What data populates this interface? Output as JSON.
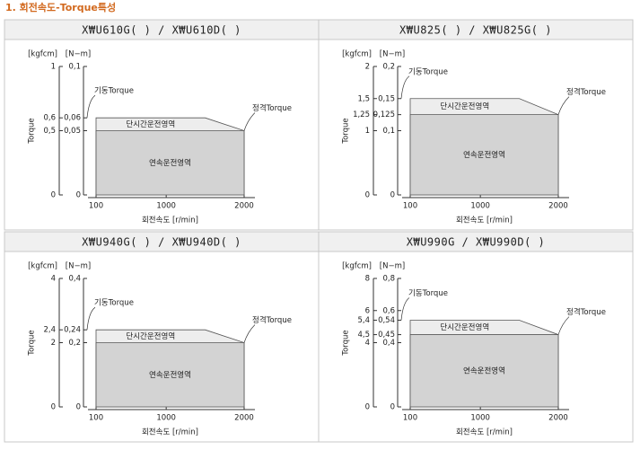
{
  "header": {
    "title": "1. 회전속도-Torque특성"
  },
  "chart_data": [
    {
      "type": "area",
      "title": "X₩U610G( ) / X₩U610D( )",
      "y_label": "Torque",
      "y_unit": "[N−m]",
      "y2_unit": "[kgfcm]",
      "x_label": "회전속도 [r/min]",
      "xlim": [
        100,
        2000
      ],
      "xticks": [
        100,
        1000,
        2000
      ],
      "ylim": [
        0,
        0.1
      ],
      "yticks": [
        0,
        {
          "value": 0.05,
          "label": "0,05"
        },
        {
          "value": 0.06,
          "label": "0,06"
        },
        {
          "value": 0.1,
          "label": "0,1"
        }
      ],
      "y2lim": [
        0,
        1
      ],
      "y2ticks": [
        0,
        {
          "value": 0.5,
          "label": "0,5"
        },
        {
          "value": 0.6,
          "label": "0,6"
        },
        1
      ],
      "annotations": [
        "기동Torque",
        "정격Torque"
      ],
      "series": [
        {
          "name": "단시간운전영역",
          "color": "#ededed",
          "x": [
            100,
            1500,
            2000
          ],
          "values": [
            0.06,
            0.06,
            0.05
          ]
        },
        {
          "name": "연속운전영역",
          "color": "#d3d3d3",
          "x": [
            100,
            2000
          ],
          "values": [
            0.05,
            0.05
          ]
        }
      ]
    },
    {
      "type": "area",
      "title": "X₩U825( ) / X₩U825G( )",
      "y_label": "Torque",
      "y_unit": "[N−m]",
      "y2_unit": "[kgfcm]",
      "x_label": "회전속도 [r/min]",
      "xlim": [
        100,
        2000
      ],
      "xticks": [
        100,
        1000,
        2000
      ],
      "ylim": [
        0,
        0.2
      ],
      "yticks": [
        0,
        {
          "value": 0.1,
          "label": "0,1"
        },
        {
          "value": 0.125,
          "label": "0,125"
        },
        {
          "value": 0.15,
          "label": "0,15"
        },
        {
          "value": 0.2,
          "label": "0,2"
        }
      ],
      "y2lim": [
        0,
        2
      ],
      "y2ticks": [
        0,
        1,
        {
          "value": 1.25,
          "label": "1,25"
        },
        {
          "value": 1.5,
          "label": "1,5"
        },
        2
      ],
      "annotations": [
        "기동Torque",
        "정격Torque"
      ],
      "series": [
        {
          "name": "단시간운전영역",
          "color": "#ededed",
          "x": [
            100,
            1500,
            2000
          ],
          "values": [
            0.15,
            0.15,
            0.125
          ]
        },
        {
          "name": "연속운전영역",
          "color": "#d3d3d3",
          "x": [
            100,
            2000
          ],
          "values": [
            0.125,
            0.125
          ]
        }
      ]
    },
    {
      "type": "area",
      "title": "X₩U940G( ) / X₩U940D( )",
      "y_label": "Torque",
      "y_unit": "[N−m]",
      "y2_unit": "[kgfcm]",
      "x_label": "회전속도 [r/min]",
      "xlim": [
        100,
        2000
      ],
      "xticks": [
        100,
        1000,
        2000
      ],
      "ylim": [
        0,
        0.4
      ],
      "yticks": [
        0,
        {
          "value": 0.2,
          "label": "0,2"
        },
        {
          "value": 0.24,
          "label": "0,24"
        },
        {
          "value": 0.4,
          "label": "0,4"
        }
      ],
      "y2lim": [
        0,
        4
      ],
      "y2ticks": [
        0,
        2,
        {
          "value": 2.4,
          "label": "2,4"
        },
        4
      ],
      "annotations": [
        "기동Torque",
        "정격Torque"
      ],
      "series": [
        {
          "name": "단시간운전영역",
          "color": "#ededed",
          "x": [
            100,
            1500,
            2000
          ],
          "values": [
            0.24,
            0.24,
            0.2
          ]
        },
        {
          "name": "연속운전영역",
          "color": "#d3d3d3",
          "x": [
            100,
            2000
          ],
          "values": [
            0.2,
            0.2
          ]
        }
      ]
    },
    {
      "type": "area",
      "title": "X₩U990G / X₩U990D( )",
      "y_label": "Torque",
      "y_unit": "[N−m]",
      "y2_unit": "[kgfcm]",
      "x_label": "회전속도 [r/min]",
      "xlim": [
        100,
        2000
      ],
      "xticks": [
        100,
        1000,
        2000
      ],
      "ylim": [
        0,
        0.8
      ],
      "yticks": [
        0,
        {
          "value": 0.4,
          "label": "0,4"
        },
        {
          "value": 0.45,
          "label": "0,45"
        },
        {
          "value": 0.54,
          "label": "0,54"
        },
        {
          "value": 0.6,
          "label": "0,6"
        },
        {
          "value": 0.8,
          "label": "0,8"
        }
      ],
      "y2lim": [
        0,
        8
      ],
      "y2ticks": [
        0,
        4,
        {
          "value": 4.5,
          "label": "4,5"
        },
        {
          "value": 5.4,
          "label": "5,4"
        },
        6,
        8
      ],
      "annotations": [
        "기동Torque",
        "정격Torque"
      ],
      "series": [
        {
          "name": "단시간운전영역",
          "color": "#ededed",
          "x": [
            100,
            1500,
            2000
          ],
          "values": [
            0.54,
            0.54,
            0.45
          ]
        },
        {
          "name": "연속운전영역",
          "color": "#d3d3d3",
          "x": [
            100,
            2000
          ],
          "values": [
            0.45,
            0.45
          ]
        }
      ]
    }
  ]
}
